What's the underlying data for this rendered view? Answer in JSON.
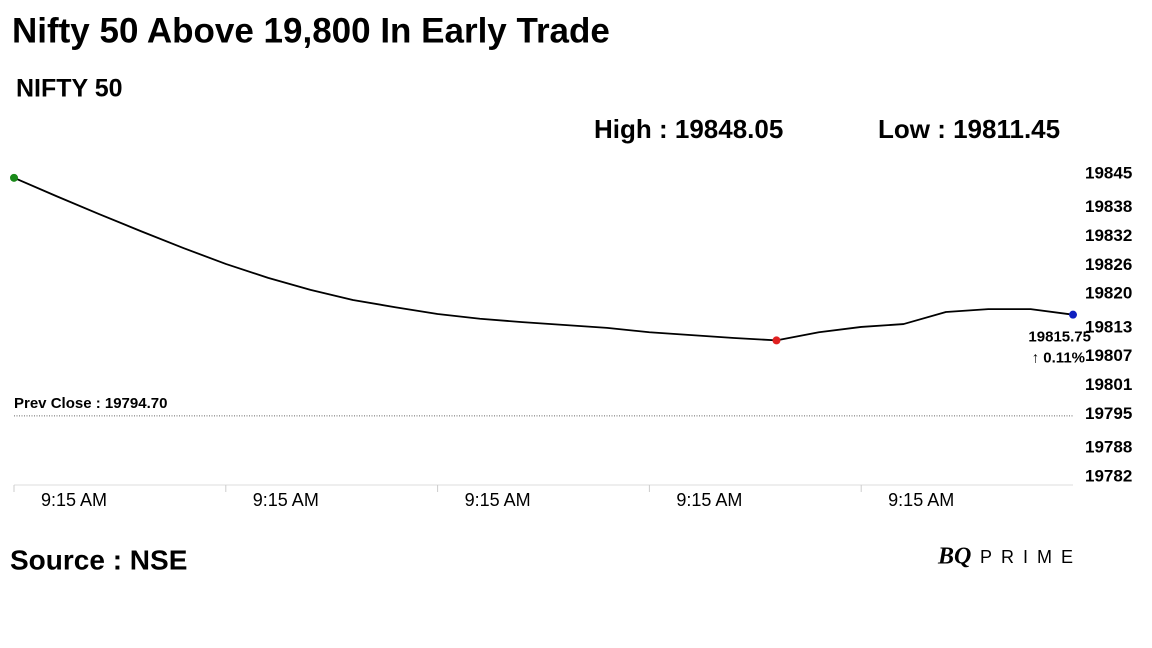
{
  "chart_data": {
    "type": "line",
    "title": "Nifty 50 Above 19,800 In Early Trade",
    "subtitle": "NIFTY 50",
    "high_label": "High : 19848.05",
    "low_label": "Low : 19811.45",
    "prev_close": 19794.7,
    "prev_close_label": "Prev Close : 19794.70",
    "change_label": "↑ 0.11%",
    "source": "Source : NSE",
    "logo": {
      "mark": "BQ",
      "word": "PRIME"
    },
    "categories": [
      "9:15 AM",
      null,
      null,
      null,
      null,
      "9:15 AM",
      null,
      null,
      null,
      null,
      "9:15 AM",
      null,
      null,
      null,
      null,
      "9:15 AM",
      null,
      null,
      null,
      null,
      "9:15 AM",
      null,
      null,
      null,
      null,
      null
    ],
    "series": [
      {
        "color": "#000000",
        "values": [
          19844.2,
          19840.4,
          19836.7,
          19833.1,
          19829.6,
          19826.3,
          19823.4,
          19820.9,
          19818.8,
          19817.3,
          19815.9,
          19814.9,
          19814.2,
          19813.6,
          19813.0,
          19812.1,
          19811.5,
          19810.9,
          19810.4,
          19812.1,
          19813.2,
          19813.8,
          19816.3,
          19816.9,
          19816.9,
          19815.75
        ]
      }
    ],
    "markers": [
      {
        "index": 0,
        "color": "#1a8a1a"
      },
      {
        "index": 18,
        "color": "#e02020"
      },
      {
        "index": 25,
        "color": "#1020c0"
      }
    ],
    "change_color": "#1a8a1a",
    "ylim": [
      19782,
      19845
    ],
    "yticks": [
      19845,
      19838,
      19832,
      19826,
      19820,
      19813,
      19807,
      19801,
      19795,
      19788,
      19782
    ]
  }
}
